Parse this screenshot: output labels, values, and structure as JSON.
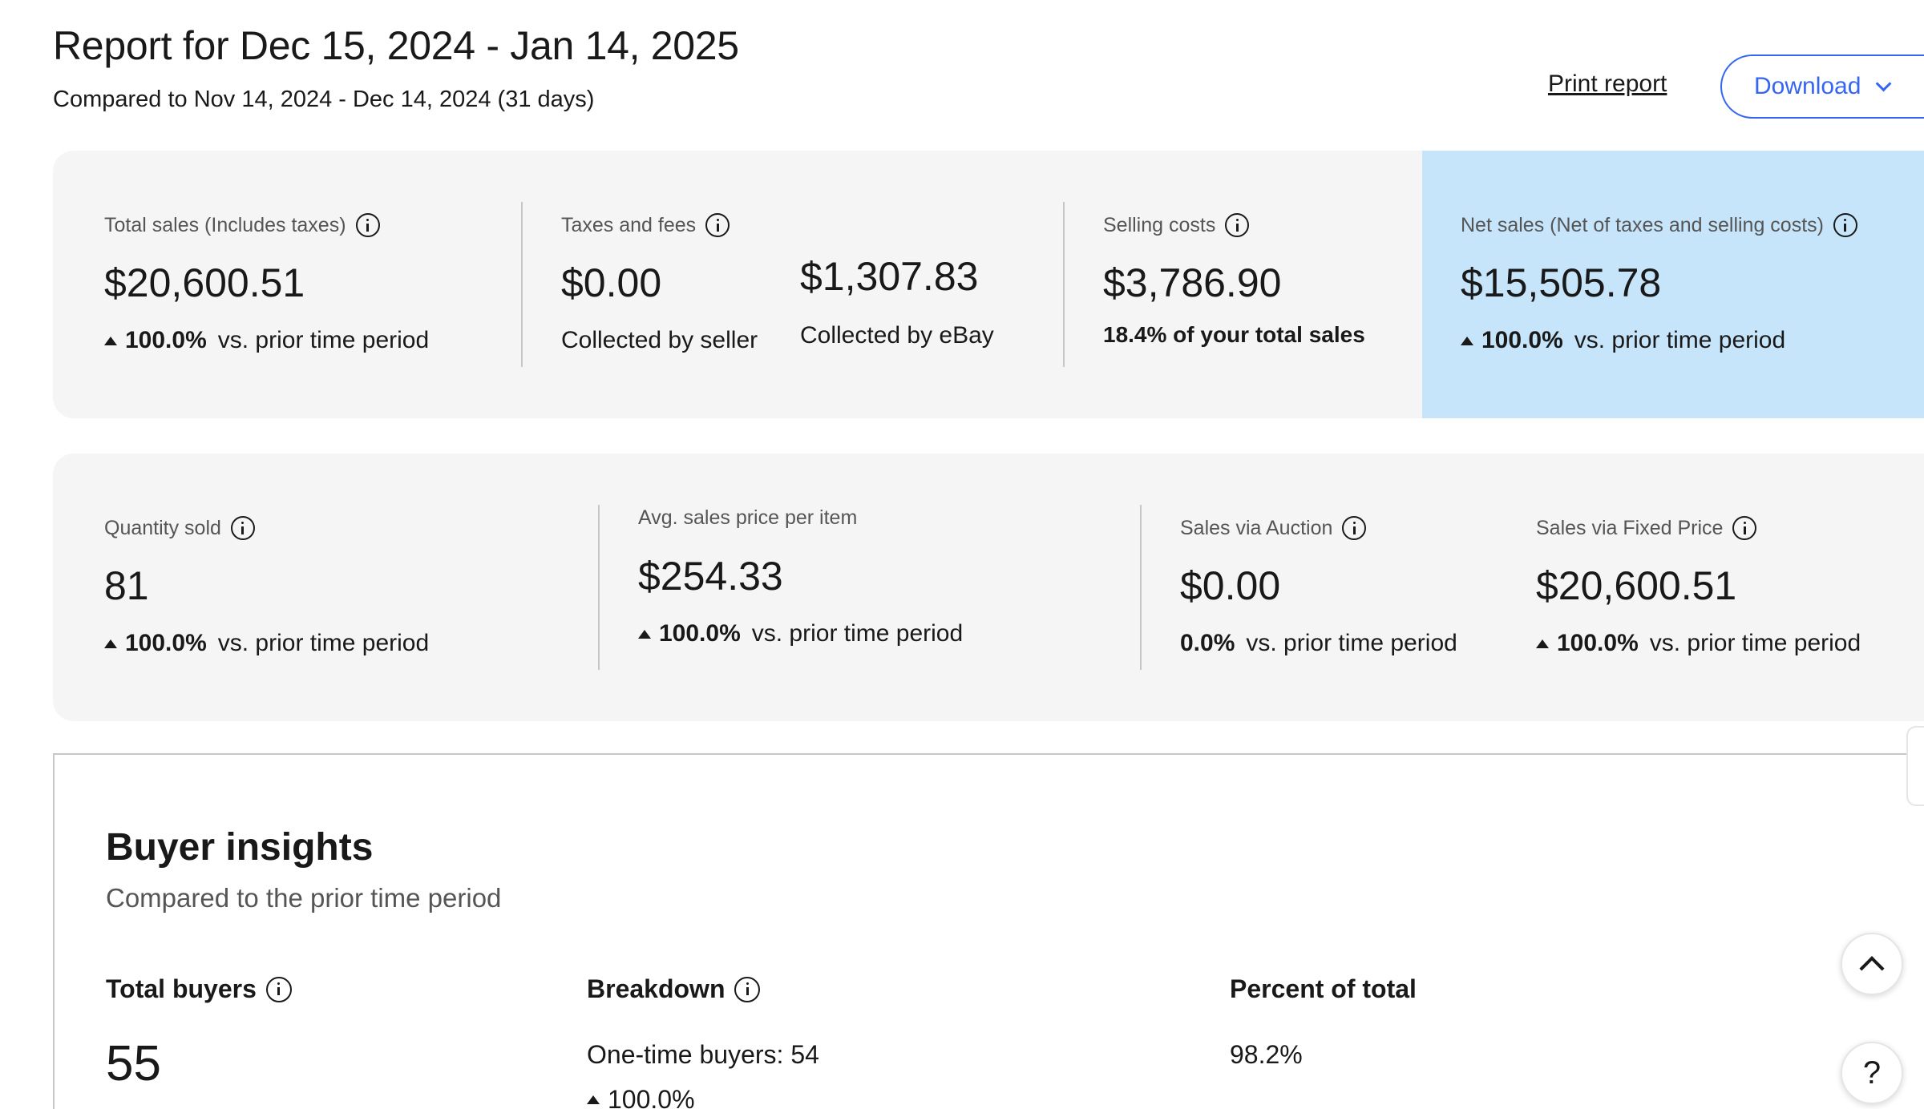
{
  "header": {
    "title": "Report for Dec 15, 2024 - Jan 14, 2025",
    "subtitle": "Compared to Nov 14, 2024 - Dec 14, 2024 (31 days)",
    "print_label": "Print report",
    "download_label": "Download"
  },
  "summary": {
    "total_sales": {
      "label": "Total sales (Includes taxes)",
      "value": "$20,600.51",
      "change": "100.0%",
      "change_text": "vs. prior time period"
    },
    "taxes_fees": {
      "label": "Taxes and fees",
      "seller_value": "$0.00",
      "seller_label": "Collected by seller",
      "ebay_value": "$1,307.83",
      "ebay_label": "Collected by eBay"
    },
    "selling_costs": {
      "label": "Selling costs",
      "value": "$3,786.90",
      "note": "18.4% of your total sales"
    },
    "net_sales": {
      "label": "Net sales (Net of taxes and selling costs)",
      "value": "$15,505.78",
      "change": "100.0%",
      "change_text": "vs. prior time period"
    }
  },
  "details": {
    "quantity_sold": {
      "label": "Quantity sold",
      "value": "81",
      "change": "100.0%",
      "change_text": "vs. prior time period"
    },
    "avg_price": {
      "label": "Avg. sales price per item",
      "value": "$254.33",
      "change": "100.0%",
      "change_text": "vs. prior time period"
    },
    "auction": {
      "label": "Sales via Auction",
      "value": "$0.00",
      "change": "0.0%",
      "change_text": "vs. prior time period"
    },
    "fixed_price": {
      "label": "Sales via Fixed Price",
      "value": "$20,600.51",
      "change": "100.0%",
      "change_text": "vs. prior time period"
    }
  },
  "buyer_insights": {
    "title": "Buyer insights",
    "subtitle": "Compared to the prior time period",
    "total_buyers_label": "Total buyers",
    "total_buyers_value": "55",
    "breakdown_label": "Breakdown",
    "breakdown_first": "One-time buyers: 54",
    "breakdown_change": "100.0%",
    "percent_label": "Percent of total",
    "percent_first": "98.2%"
  },
  "floating": {
    "help_label": "?"
  },
  "colors": {
    "accent": "#3665f3",
    "net_highlight": "#c6e5fa",
    "card_bg": "#f5f5f5"
  }
}
